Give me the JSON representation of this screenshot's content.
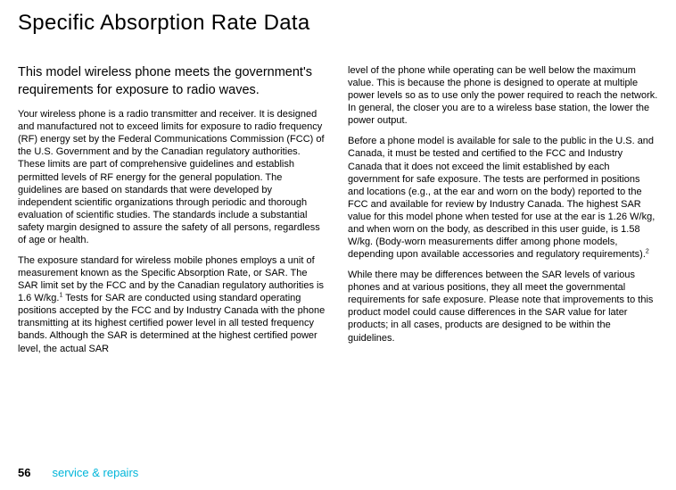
{
  "title": "Specific Absorption Rate Data",
  "subheading": "This model wireless phone meets the government's requirements for exposure to radio waves.",
  "col1_p1_a": "Your wireless phone is a radio transmitter and receiver. It is designed and manufactured not to exceed limits for exposure to radio frequency (RF) energy set by the Federal Communications Commission (FCC) of the U.S. Government and by the Canadian regulatory authorities. These limits are part of comprehensive guidelines and establish permitted levels of RF energy for the general population. The guidelines are based on standards that were developed by independent scientific organizations through periodic and thorough evaluation of scientific studies. The standards include a substantial safety margin designed to assure the safety of all persons, regardless of age or health.",
  "col1_p2_a": "The exposure standard for wireless mobile phones employs a unit of measurement known as the Specific Absorption Rate, or SAR. The SAR limit set by the FCC and by the Canadian regulatory authorities is 1.6 W/kg.",
  "col1_p2_sup": "1",
  "col1_p2_b": " Tests for SAR are conducted using standard operating positions accepted by the FCC and by Industry Canada with the phone transmitting at its highest certified power level in all tested frequency bands. Although the SAR is determined at the highest certified power level, the actual SAR ",
  "col2_p1": "level of the phone while operating can be well below the maximum value. This is because the phone is designed to operate at multiple power levels so as to use only the power required to reach the network. In general, the closer you are to a wireless base station, the lower the power output.",
  "col2_p2_a": "Before a phone model is available for sale to the public in the U.S. and Canada, it must be tested and certified to the FCC and Industry Canada that it does not exceed the limit established by each government for safe exposure. The tests are performed in positions and locations (e.g., at the ear and worn on the body) reported to the FCC and available for review by Industry Canada. The highest SAR value for this model phone when tested for use at the ear is 1.26 W/kg, and when worn on the body, as described in this user guide, is 1.58 W/kg. (Body-worn measurements differ among phone models, depending upon available accessories and regulatory requirements).",
  "col2_p2_sup": "2",
  "col2_p3": "While there may be differences between the SAR levels of various phones and at various positions, they all meet the governmental requirements for safe exposure. Please note that improvements to this product model could cause differences in the SAR value for later products; in all cases, products are designed to be within the guidelines.",
  "page_number": "56",
  "footer_label": "service & repairs",
  "colors": {
    "text": "#000000",
    "accent": "#00b5d9",
    "background": "#ffffff"
  },
  "typography": {
    "title_fontsize": 24,
    "subheading_fontsize": 14.5,
    "body_fontsize": 11,
    "footer_fontsize": 13,
    "superscript_fontsize": 7
  }
}
